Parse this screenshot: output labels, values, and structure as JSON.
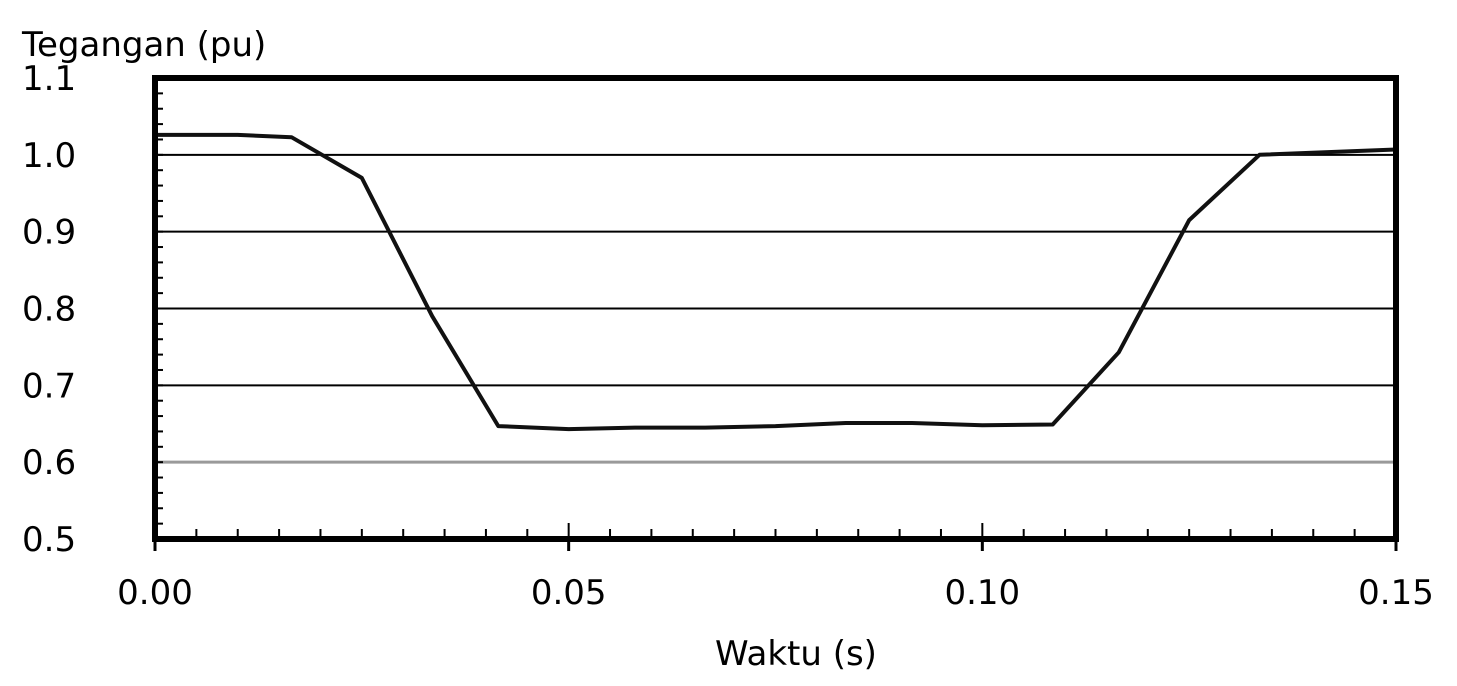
{
  "chart_data": {
    "type": "line",
    "ylabel": "Tegangan (pu)",
    "xlabel": "Waktu (s)",
    "xlim": [
      0.0,
      0.15
    ],
    "ylim": [
      0.5,
      1.1
    ],
    "x_tick_labels": [
      "0.00",
      "0.05",
      "0.10",
      "0.15"
    ],
    "x_tick_values": [
      0.0,
      0.05,
      0.1,
      0.15
    ],
    "y_tick_labels": [
      "1.1",
      "1.0",
      "0.9",
      "0.8",
      "0.7",
      "0.6",
      "0.5"
    ],
    "y_tick_values": [
      1.1,
      1.0,
      0.9,
      0.8,
      0.7,
      0.6,
      0.5
    ],
    "gridlines_y": [
      1.0,
      0.9,
      0.8,
      0.7,
      0.6
    ],
    "grid": true,
    "series": [
      {
        "color": "#111111",
        "x": [
          0.0,
          0.01,
          0.0165,
          0.025,
          0.0335,
          0.0415,
          0.05,
          0.058,
          0.0665,
          0.075,
          0.0835,
          0.0915,
          0.1,
          0.1085,
          0.1165,
          0.125,
          0.1335,
          0.15
        ],
        "y": [
          1.026,
          1.026,
          1.023,
          0.97,
          0.79,
          0.647,
          0.643,
          0.645,
          0.645,
          0.647,
          0.651,
          0.651,
          0.648,
          0.649,
          0.743,
          0.915,
          1.0,
          1.007
        ]
      }
    ]
  }
}
